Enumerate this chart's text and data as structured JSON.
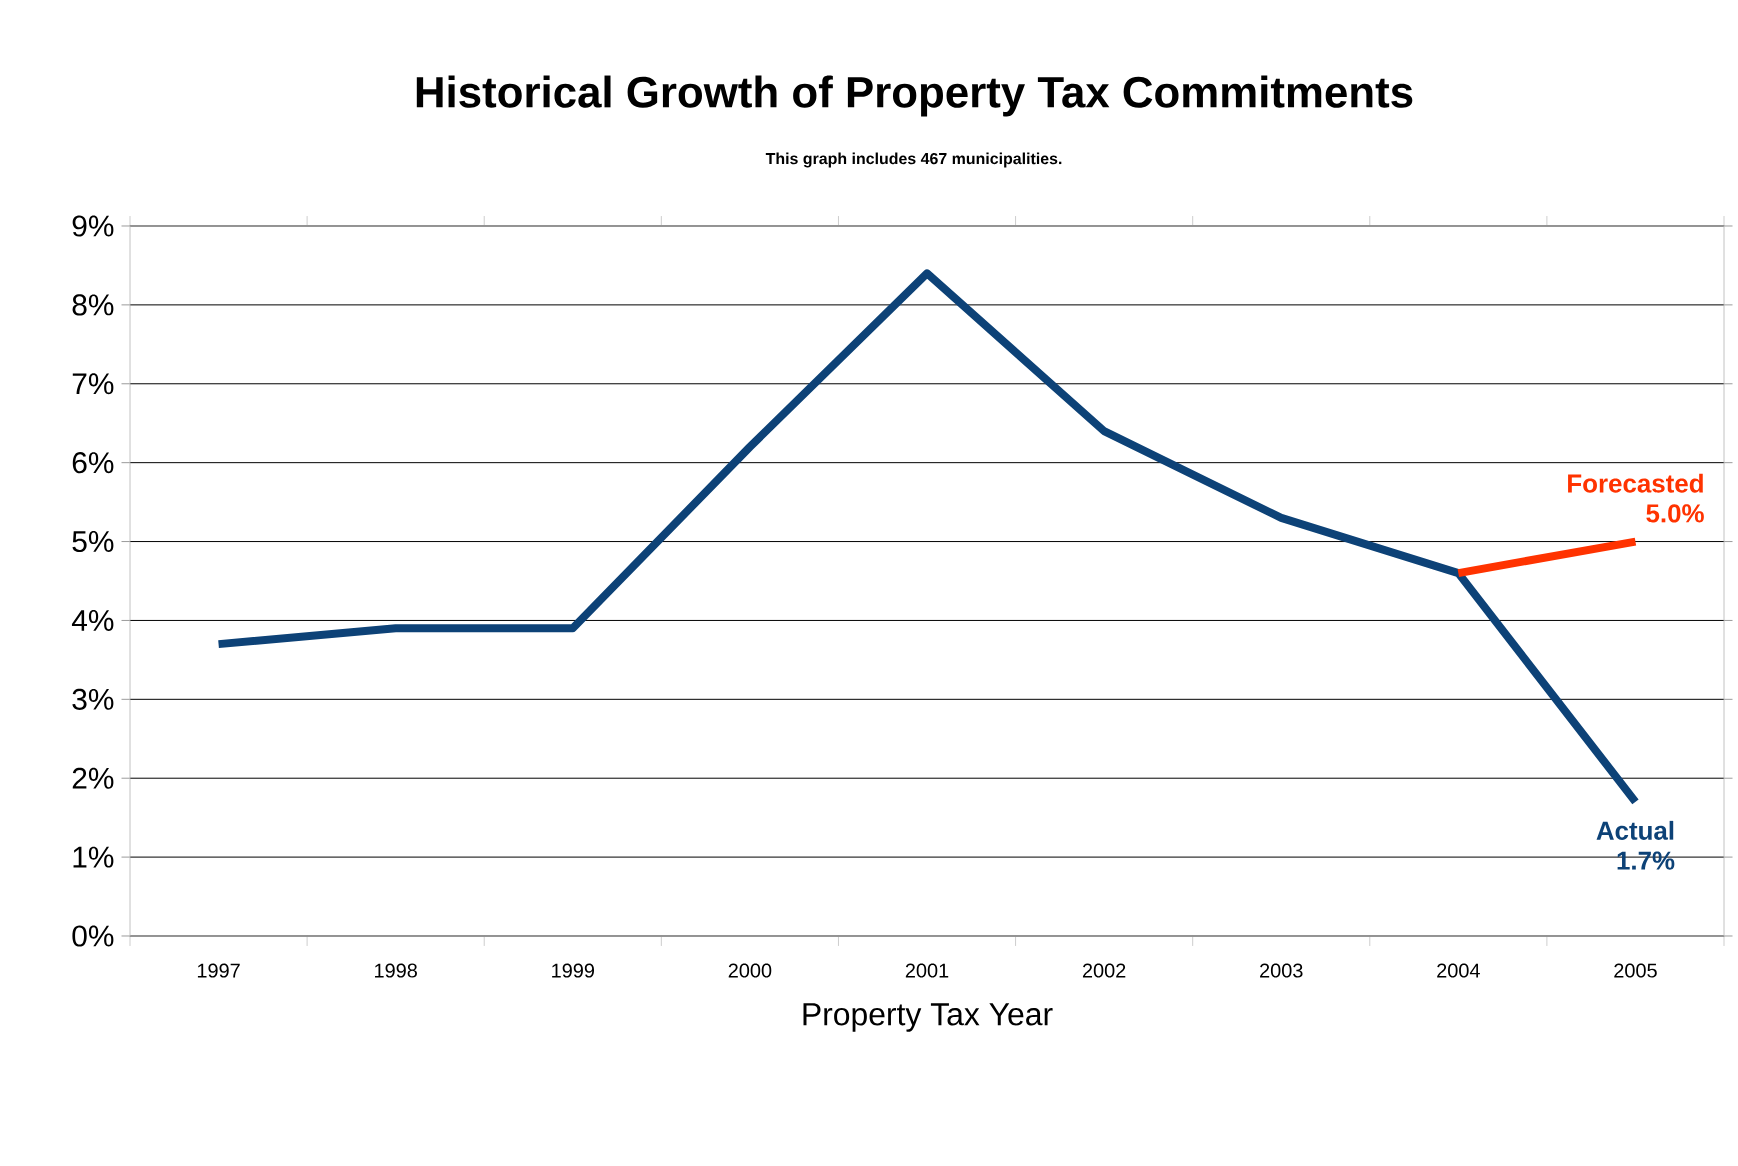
{
  "chart_data": {
    "type": "line",
    "title": "Historical Growth of Property Tax Commitments",
    "subtitle": "This graph includes 467 municipalities.",
    "xlabel": "Property Tax Year",
    "categories": [
      "1997",
      "1998",
      "1999",
      "2000",
      "2001",
      "2002",
      "2003",
      "2004",
      "2005"
    ],
    "series": [
      {
        "name": "Actual",
        "color": "#0d4277",
        "values": [
          3.7,
          3.9,
          3.9,
          6.2,
          8.4,
          6.4,
          5.3,
          4.6,
          1.7
        ],
        "value_labels": [
          null,
          null,
          null,
          null,
          null,
          null,
          null,
          null,
          "1.7%"
        ]
      },
      {
        "name": "Forecasted",
        "color": "#ff3300",
        "values": [
          null,
          null,
          null,
          null,
          null,
          null,
          null,
          4.6,
          5.0
        ],
        "value_labels": [
          null,
          null,
          null,
          null,
          null,
          null,
          null,
          null,
          "5.0%"
        ]
      }
    ],
    "ylim": [
      0,
      9
    ],
    "yticks": [
      {
        "value": 0,
        "label": "0%"
      },
      {
        "value": 1,
        "label": "1%"
      },
      {
        "value": 2,
        "label": "2%"
      },
      {
        "value": 3,
        "label": "3%"
      },
      {
        "value": 4,
        "label": "4%"
      },
      {
        "value": 5,
        "label": "5%"
      },
      {
        "value": 6,
        "label": "6%"
      },
      {
        "value": 7,
        "label": "7%"
      },
      {
        "value": 8,
        "label": "8%"
      },
      {
        "value": 9,
        "label": "9%"
      }
    ],
    "grid": "y",
    "marker": "none",
    "line_style": "solid"
  }
}
